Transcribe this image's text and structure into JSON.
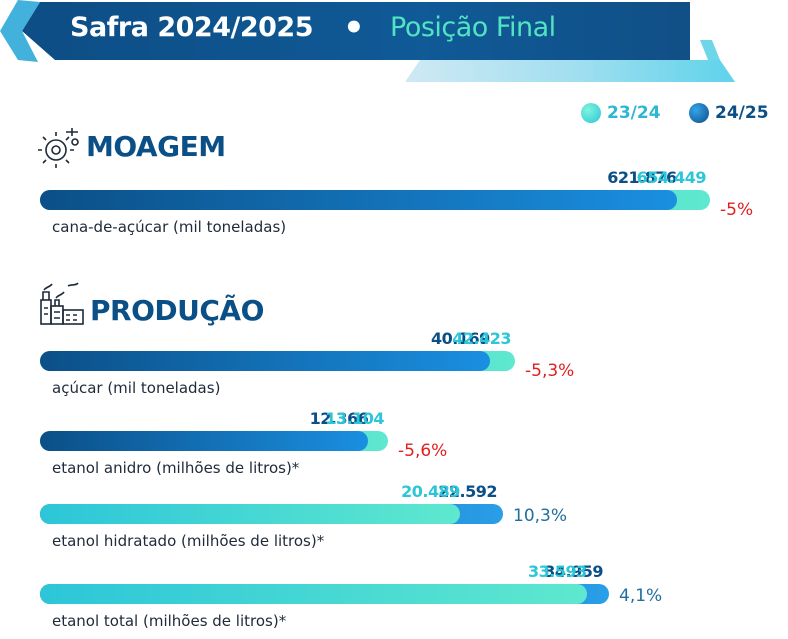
{
  "header": {
    "title": "Safra 2024/2025",
    "separator": "•",
    "subtitle": "Posição Final"
  },
  "colors": {
    "dark_blue": "#0b4f87",
    "mid_blue": "#1a8fe0",
    "teal": "#52e3c2",
    "light_teal": "#2cc6d8",
    "negative": "#e02020",
    "positive": "#1f6f9f"
  },
  "sections": {
    "moagem": {
      "title": "MOAGEM",
      "icon": "gear-icon"
    },
    "producao": {
      "title": "PRODUÇÃO",
      "icon": "factory-icon"
    }
  },
  "chart_data": {
    "type": "bar",
    "orientation": "horizontal",
    "legend": [
      "23/24",
      "24/25"
    ],
    "legend_position": "top-right",
    "categories": [
      "cana-de-açúcar (mil toneladas)",
      "açúcar (mil toneladas)",
      "etanol anidro (milhões de litros)*",
      "etanol hidratado (milhões de litros)*",
      "etanol total (milhões de litros)*"
    ],
    "rows": [
      {
        "category": "cana-de-açúcar (mil toneladas)",
        "v2324": 654449,
        "v2425": 621876,
        "label2324": "654.449",
        "label2425": "621.876",
        "change": "-5%"
      },
      {
        "category": "açúcar (mil toneladas)",
        "v2324": 42423,
        "v2425": 40169,
        "label2324": "42.423",
        "label2425": "40.169",
        "change": "-5,3%"
      },
      {
        "category": "etanol anidro (milhões de litros)*",
        "v2324": 13104,
        "v2425": 12366,
        "label2324": "13.104",
        "label2425": "12.366",
        "change": "-5,6%"
      },
      {
        "category": "etanol hidratado (milhões de litros)*",
        "v2324": 20489,
        "v2425": 22592,
        "label2324": "20.489",
        "label2425": "22.592",
        "change": "10,3%"
      },
      {
        "category": "etanol total (milhões de litros)*",
        "v2324": 33593,
        "v2425": 34959,
        "label2324": "33.593",
        "label2425": "34.959",
        "change": "4,1%"
      }
    ]
  }
}
